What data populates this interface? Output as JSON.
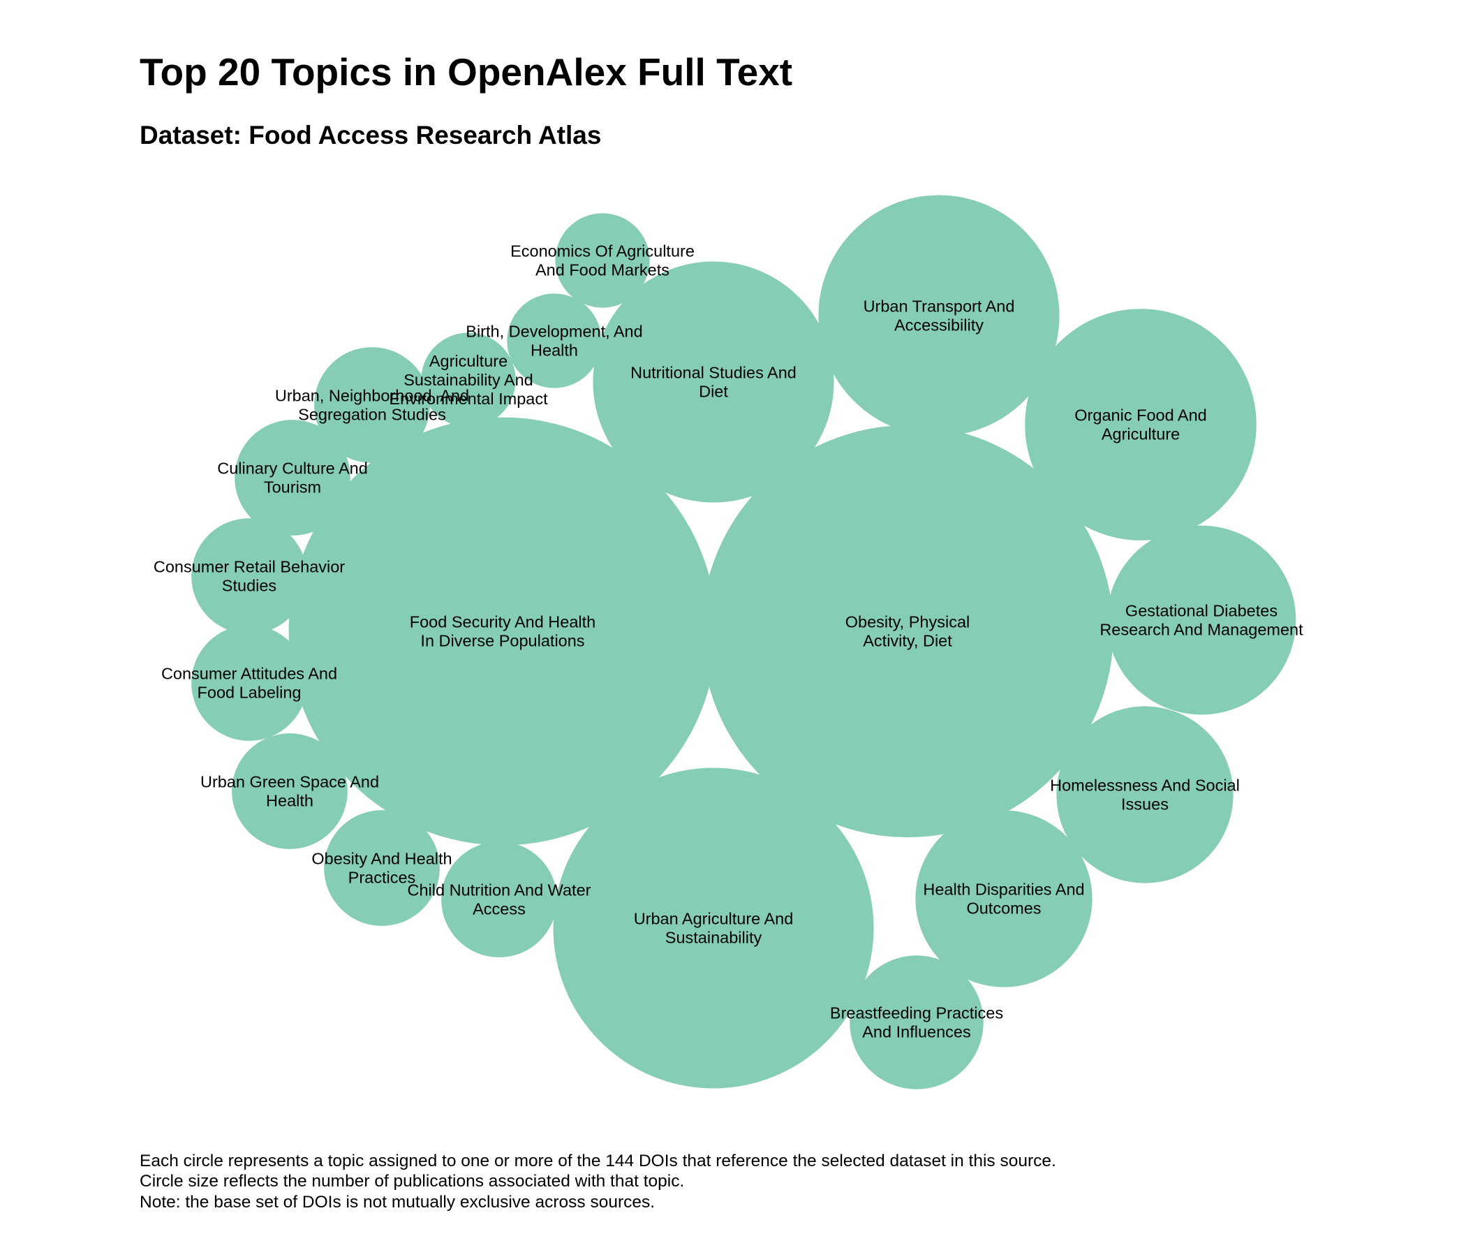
{
  "colors": {
    "bubble": "#85cdb5",
    "background": "#ffffff",
    "text": "#000000"
  },
  "chart_data": {
    "type": "bubble",
    "title": "Top 20 Topics in OpenAlex Full Text",
    "subtitle": "Dataset: Food Access Research Atlas",
    "notes": [
      "Each circle represents a topic assigned to one or more of the 144 DOIs that reference the selected dataset in this source.",
      "Circle size reflects the number of publications associated with that topic.",
      "Note: the base set of DOIs is not mutually exclusive across sources."
    ],
    "topics": [
      {
        "name": "Obesity, Physical Activity, Diet",
        "lines": [
          "Obesity, Physical",
          "Activity, Diet"
        ],
        "value": 38
      },
      {
        "name": "Food Security And Health In Diverse Populations",
        "lines": [
          "Food Security And Health",
          "In Diverse Populations"
        ],
        "value": 41
      },
      {
        "name": "Urban Agriculture And Sustainability",
        "lines": [
          "Urban Agriculture And",
          "Sustainability"
        ],
        "value": 23
      },
      {
        "name": "Nutritional Studies And Diet",
        "lines": [
          "Nutritional Studies And",
          "Diet"
        ],
        "value": 13
      },
      {
        "name": "Urban Transport And Accessibility",
        "lines": [
          "Urban Transport And",
          "Accessibility"
        ],
        "value": 13
      },
      {
        "name": "Organic Food And Agriculture",
        "lines": [
          "Organic Food And",
          "Agriculture"
        ],
        "value": 12
      },
      {
        "name": "Gestational Diabetes Research And Management",
        "lines": [
          "Gestational Diabetes",
          "Research And Management"
        ],
        "value": 8
      },
      {
        "name": "Homelessness And Social Issues",
        "lines": [
          "Homelessness And Social",
          "Issues"
        ],
        "value": 7
      },
      {
        "name": "Health Disparities And Outcomes",
        "lines": [
          "Health Disparities And",
          "Outcomes"
        ],
        "value": 7
      },
      {
        "name": "Breastfeeding Practices And Influences",
        "lines": [
          "Breastfeeding Practices",
          "And Influences"
        ],
        "value": 4
      },
      {
        "name": "Child Nutrition And Water Access",
        "lines": [
          "Child Nutrition And Water",
          "Access"
        ],
        "value": 3
      },
      {
        "name": "Obesity And Health Practices",
        "lines": [
          "Obesity And Health",
          "Practices"
        ],
        "value": 3
      },
      {
        "name": "Urban Green Space And Health",
        "lines": [
          "Urban Green Space And",
          "Health"
        ],
        "value": 3
      },
      {
        "name": "Consumer Attitudes And Food Labeling",
        "lines": [
          "Consumer Attitudes And",
          "Food Labeling"
        ],
        "value": 3
      },
      {
        "name": "Consumer Retail Behavior Studies",
        "lines": [
          "Consumer Retail Behavior",
          "Studies"
        ],
        "value": 3
      },
      {
        "name": "Culinary Culture And Tourism",
        "lines": [
          "Culinary Culture And",
          "Tourism"
        ],
        "value": 3
      },
      {
        "name": "Urban, Neighborhood, And Segregation Studies",
        "lines": [
          "Urban, Neighborhood, And",
          "Segregation Studies"
        ],
        "value": 3
      },
      {
        "name": "Agriculture Sustainability And Environmental Impact",
        "lines": [
          "Agriculture",
          "Sustainability And",
          "Environmental Impact"
        ],
        "value": 2
      },
      {
        "name": "Birth, Development, And Health",
        "lines": [
          "Birth, Development, And",
          "Health"
        ],
        "value": 2
      },
      {
        "name": "Economics Of Agriculture And Food Markets",
        "lines": [
          "Economics Of Agriculture",
          "And Food Markets"
        ],
        "value": 2
      }
    ]
  }
}
